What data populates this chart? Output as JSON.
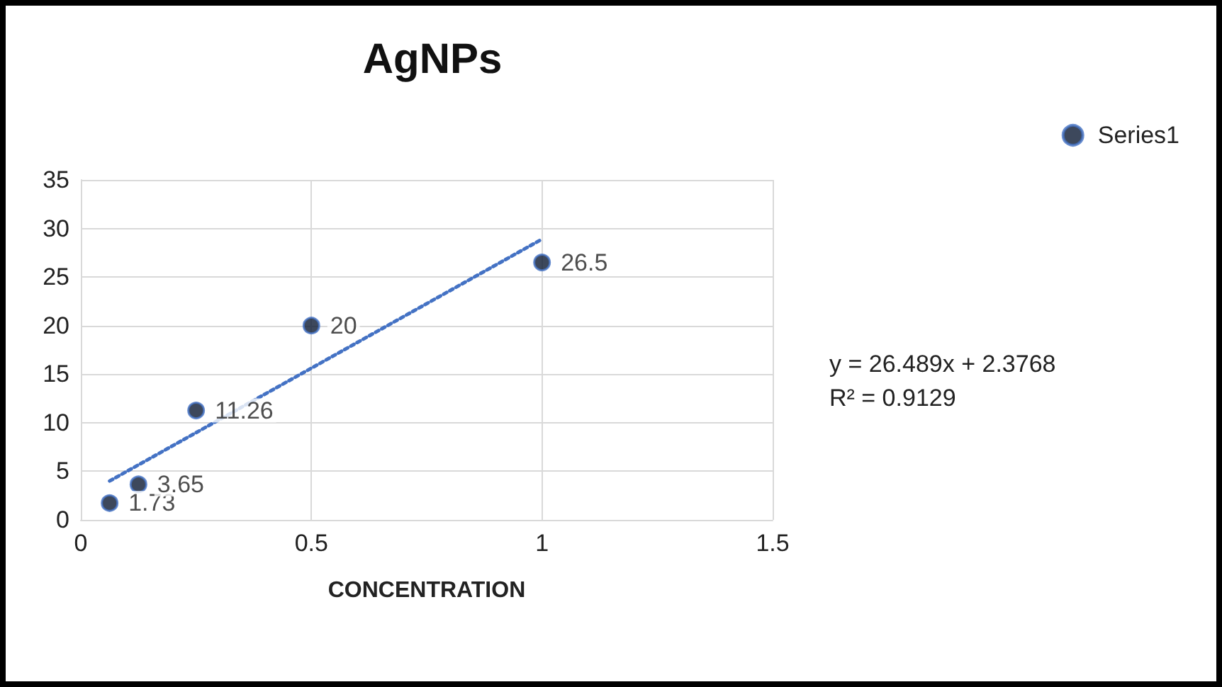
{
  "chart_data": {
    "type": "scatter",
    "title": "AgNPs",
    "xlabel": "CONCENTRATION",
    "xlim": [
      0,
      1.5
    ],
    "xticks": [
      0,
      0.5,
      1,
      1.5
    ],
    "ylim": [
      0,
      35
    ],
    "yticks": [
      0,
      5,
      10,
      15,
      20,
      25,
      30,
      35
    ],
    "grid": true,
    "legend": "top right",
    "marker": "circle",
    "x": [
      0.0625,
      0.125,
      0.25,
      0.5,
      1
    ],
    "series": [
      {
        "name": "Series1",
        "color": "#0d1a33",
        "values": [
          1.73,
          3.65,
          11.26,
          20,
          26.5
        ],
        "value_labels": [
          "1.73",
          "3.65",
          "11.26",
          "20",
          "26.5"
        ]
      },
      {
        "type": "line",
        "color": "#4472c4",
        "line_style": "dotted",
        "marker": "none",
        "x": [
          0.0625,
          1
        ],
        "values": [
          4,
          28.9
        ]
      }
    ],
    "annotations": [
      "y = 26.489x + 2.3768\nR² = 0.9129"
    ]
  }
}
